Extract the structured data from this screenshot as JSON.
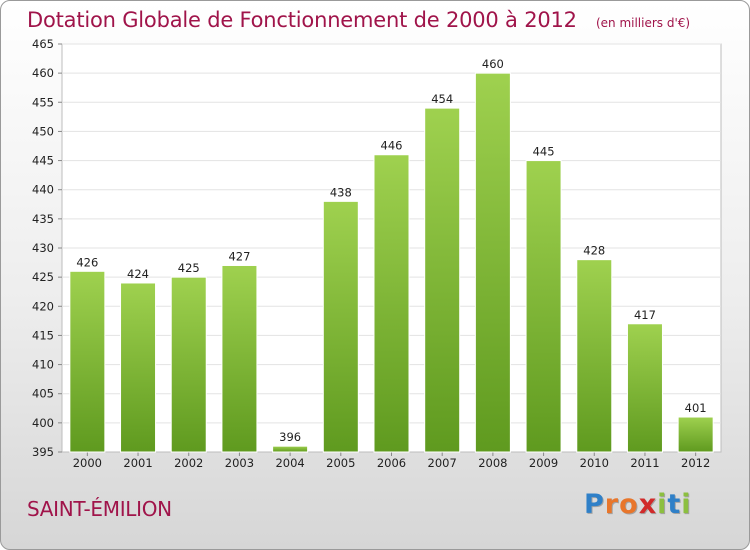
{
  "header": {
    "title": "Dotation Globale de Fonctionnement de 2000 à 2012",
    "unit": "(en milliers d'€)"
  },
  "footer": {
    "place": "SAINT-ÉMILION",
    "logo": {
      "letters": [
        "P",
        "r",
        "o",
        "x",
        "i",
        "t",
        "i"
      ],
      "colors": [
        "#2f80c8",
        "#e8762b",
        "#e8762b",
        "#d12a2a",
        "#8cbf3f",
        "#2f80c8",
        "#8cbf3f"
      ]
    }
  },
  "chart_data": {
    "type": "bar",
    "categories": [
      "2000",
      "2001",
      "2002",
      "2003",
      "2004",
      "2005",
      "2006",
      "2007",
      "2008",
      "2009",
      "2010",
      "2011",
      "2012"
    ],
    "values": [
      426,
      424,
      425,
      427,
      396,
      438,
      446,
      454,
      460,
      445,
      428,
      417,
      401
    ],
    "ylim": [
      395,
      465
    ],
    "yticks": [
      395,
      400,
      405,
      410,
      415,
      420,
      425,
      430,
      435,
      440,
      445,
      450,
      455,
      460,
      465
    ],
    "grid": true,
    "bar_color": "#7fbd3a"
  }
}
